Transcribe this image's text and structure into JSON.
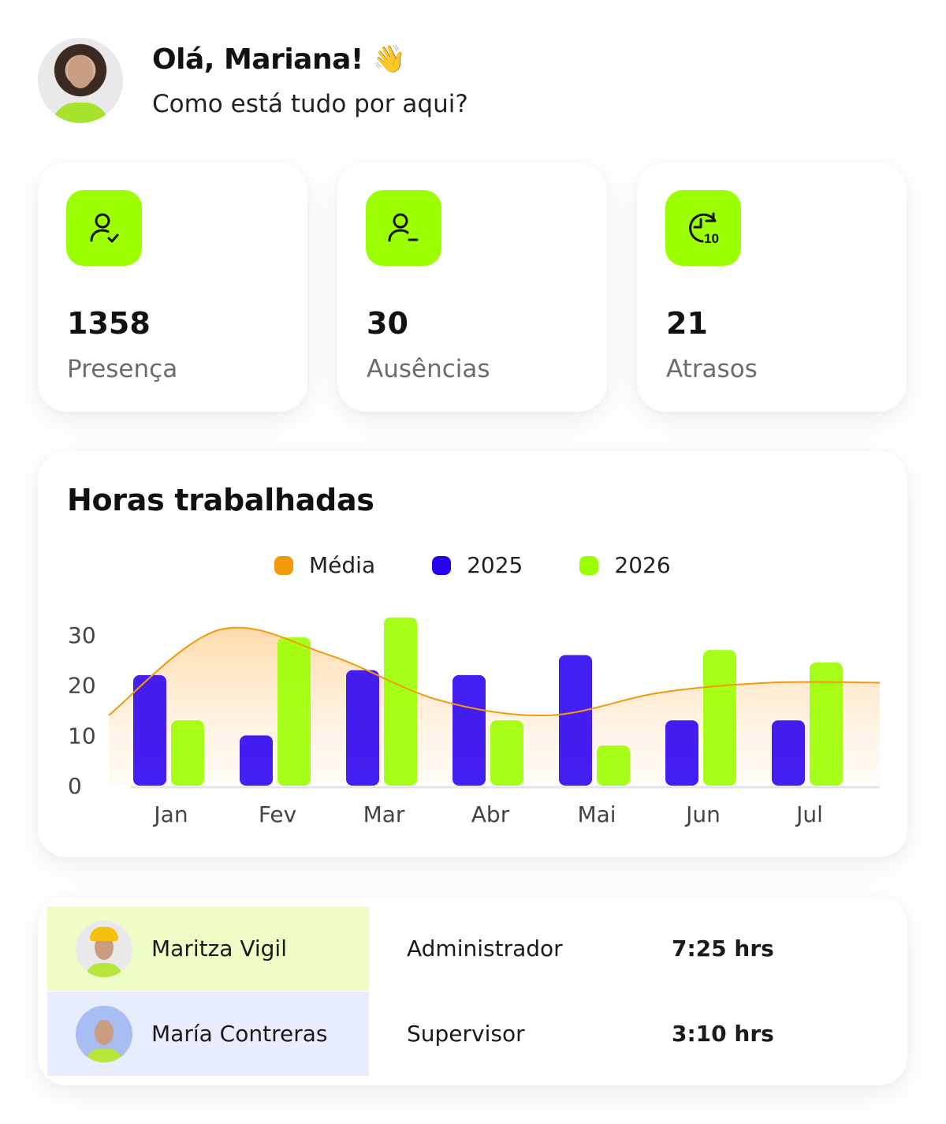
{
  "greeting": {
    "title": "Olá, Mariana!",
    "emoji": "👋",
    "subtitle": "Como está tudo por aqui?"
  },
  "stats": [
    {
      "icon": "user-check-icon",
      "value": "1358",
      "label": "Presença"
    },
    {
      "icon": "user-minus-icon",
      "value": "30",
      "label": "Ausências"
    },
    {
      "icon": "clock-ten-icon",
      "value": "21",
      "label": "Atrasos",
      "icon_text": "10"
    }
  ],
  "colors": {
    "accent_green": "#9cff00",
    "series_2025": "#2a00f0",
    "series_2026": "#9cff00",
    "average": "#f29a0c",
    "row1_bg": "#eefdc6",
    "row2_bg": "#e8edfd"
  },
  "chart_data": {
    "type": "bar",
    "title": "Horas trabalhadas",
    "categories": [
      "Jan",
      "Fev",
      "Mar",
      "Abr",
      "Mai",
      "Jun",
      "Jul"
    ],
    "series": [
      {
        "name": "2025",
        "values": [
          22,
          10,
          23,
          22,
          26,
          13,
          13
        ]
      },
      {
        "name": "2026",
        "values": [
          13,
          29.5,
          33.5,
          13,
          8,
          27,
          24.5
        ]
      }
    ],
    "average_line": {
      "name": "Média",
      "values": [
        14,
        31,
        26,
        17,
        14,
        18.5,
        20.5,
        20.5
      ]
    },
    "yticks": [
      0,
      10,
      20,
      30
    ],
    "ylim": [
      0,
      35
    ],
    "legend_position": "top-center"
  },
  "employees": [
    {
      "name": "Maritza Vigil",
      "role": "Administrador",
      "hours": "7:25 hrs"
    },
    {
      "name": "María Contreras",
      "role": "Supervisor",
      "hours": "3:10 hrs"
    }
  ]
}
